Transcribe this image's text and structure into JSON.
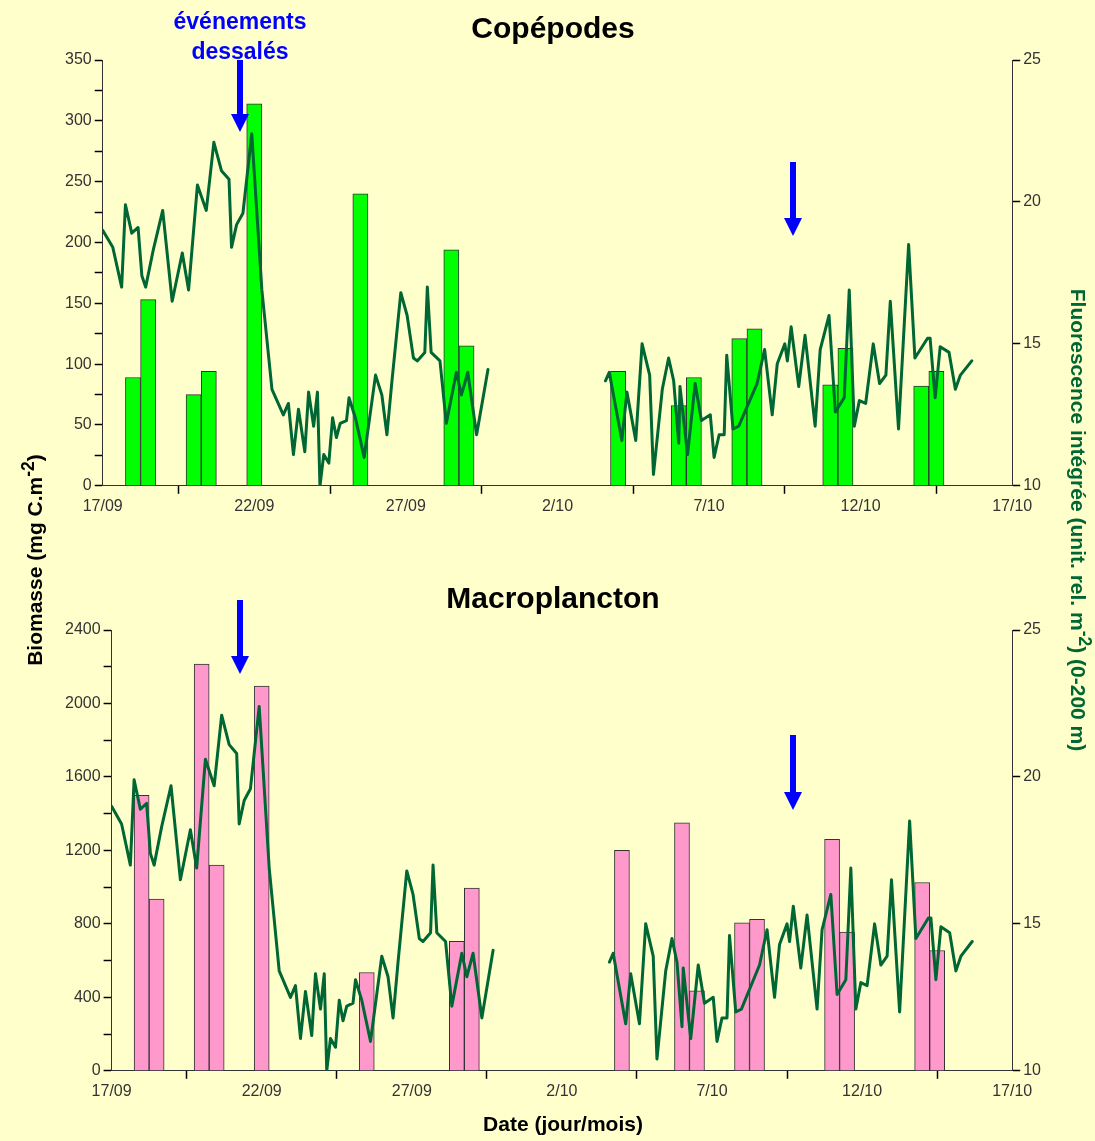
{
  "chart_data": [
    {
      "type": "bar",
      "title": "Copépodes",
      "ylabel": "Biomasse (mg C.m$^{-2}$)",
      "y2label": "Fluorescence intégrée (unit. rel. m$^{-2}$) (0-200 m)",
      "annotations": [
        "événements dessalés"
      ],
      "x": [
        "--09-18T00:00",
        "--09-18T12:00",
        "--09-20T00:00",
        "--09-20T12:00",
        "--09-22T00:00",
        "--09-25T12:00",
        "--09-28T12:00",
        "--09-29T00:00",
        "--10-04T00:00",
        "--10-06T00:00",
        "--10-06T12:00",
        "--10-08T00:00",
        "--10-08T12:00",
        "--10-11T00:00",
        "--10-11T12:00",
        "--10-14T00:00",
        "--10-14T12:00"
      ],
      "series": [
        {
          "color": "#00ff00",
          "values": [
            89,
            153,
            75,
            94,
            314,
            240,
            194,
            115,
            94,
            66,
            89,
            121,
            129,
            83,
            113,
            82,
            94
          ]
        },
        {
          "type": "line",
          "axis": "y2",
          "color": "#006633",
          "x": [
            "--09-17T00:00",
            "--09-17T08:00",
            "--09-17T15:00",
            "--09-17T18:00",
            "--09-17T23:00",
            "--09-18T04:00",
            "--09-18T07:00",
            "--09-18T10:00",
            "--09-18T16:00",
            "--09-18T23:30",
            "--09-19T07:00",
            "--09-19T15:00",
            "--09-19T20:00",
            "--09-20T03:00",
            "--09-20T10:00",
            "--09-20T16:00",
            "--09-20T22:00",
            "--09-21T04:00",
            "--09-21T06:00",
            "--09-21T10:00",
            "--09-21T15:00",
            "--09-21T22:00",
            "--09-22T06:00",
            "--09-22T14:00",
            "--09-22T23:00",
            "--09-23T03:00",
            "--09-23T07:00",
            "--09-23T11:00",
            "--09-23T16:00",
            "--09-23T19:00",
            "--09-23T23:00",
            "--09-24T02:00",
            "--09-24T04:00",
            "--09-24T07:00",
            "--09-24T11:00",
            "--09-24T14:00",
            "--09-24T17:00",
            "--09-24T20:00",
            "--09-25T01:00",
            "--09-25T03:00",
            "--09-25T08:00",
            "--09-25T15:00",
            "--09-26T00:00",
            "--09-26T05:00",
            "--09-26T09:00",
            "--09-26T13:00",
            "--09-26T20:00",
            "--09-27T01:00",
            "--09-27T06:00",
            "--09-27T09:00",
            "--09-27T15:00",
            "--09-27T17:00",
            "--09-27T20:00",
            "--09-28T03:00",
            "--09-28T08:00",
            "--09-28T16:00",
            "--09-28T20:00",
            "--09-29T01:00",
            "--09-29T08:00",
            "--09-29T17:00",
            "--10-01T00:00",
            "--10-03T14:00",
            "--10-03T17:00",
            "--10-04T03:00",
            "--10-04T07:00",
            "--10-04T14:00",
            "--10-04T19:00",
            "--10-05T01:00",
            "--10-05T04:00",
            "--10-05T11:00",
            "--10-05T16:00",
            "--10-05T20:00",
            "--10-06T00:00",
            "--10-06T01:00",
            "--10-06T07:00",
            "--10-06T13:00",
            "--10-06T18:00",
            "--10-07T01:00",
            "--10-07T04:00",
            "--10-07T08:00",
            "--10-07T12:00",
            "--10-07T14:00",
            "--10-07T19:00",
            "--10-07T23:30",
            "--10-08T14:00",
            "--10-08T20:00",
            "--10-09T02:00",
            "--10-09T06:00",
            "--10-09T12:00",
            "--10-09T14:00",
            "--10-09T17:00",
            "--10-09T23:00",
            "--10-10T04:00",
            "--10-10T12:00",
            "--10-10T16:00",
            "--10-10T23:00",
            "--10-11T04:00",
            "--10-11T11:00",
            "--10-11T15:00",
            "--10-11T19:00",
            "--10-11T23:00",
            "--10-12T04:00",
            "--10-12T10:00",
            "--10-12T15:00",
            "--10-12T20:00",
            "--10-12T23:30",
            "--10-13T06:00",
            "--10-13T14:00",
            "--10-13T19:00",
            "--10-14T05:00",
            "--10-14T07:00",
            "--10-14T11:00",
            "--10-14T15:00",
            "--10-14T22:00",
            "--10-15T03:00",
            "--10-15T07:00",
            "--10-15T16:00"
          ],
          "values": [
            19.0,
            18.4,
            17.0,
            19.9,
            18.9,
            19.1,
            17.4,
            17.0,
            18.3,
            19.7,
            16.5,
            18.2,
            16.9,
            20.6,
            19.7,
            22.1,
            21.1,
            20.8,
            18.4,
            19.2,
            19.6,
            22.4,
            16.9,
            13.4,
            12.5,
            12.9,
            11.1,
            12.7,
            11.2,
            13.3,
            12.1,
            13.3,
            10.0,
            11.1,
            10.8,
            12.4,
            11.7,
            12.2,
            12.3,
            13.1,
            12.4,
            11.0,
            13.9,
            13.2,
            11.8,
            13.7,
            16.8,
            16.0,
            14.5,
            14.4,
            14.7,
            17.0,
            14.7,
            14.4,
            12.2,
            14.0,
            13.2,
            14.0,
            11.8,
            14.1,
            null,
            13.7,
            14.0,
            11.6,
            13.3,
            11.6,
            15.0,
            13.9,
            10.4,
            13.4,
            14.5,
            13.7,
            11.5,
            13.5,
            11.1,
            13.6,
            12.3,
            12.5,
            11.0,
            11.8,
            11.8,
            14.6,
            12.0,
            12.1,
            13.6,
            14.8,
            12.5,
            14.3,
            15.0,
            14.4,
            15.6,
            13.5,
            15.3,
            12.1,
            14.8,
            16.0,
            12.6,
            13.1,
            16.9,
            12.1,
            13.0,
            12.9,
            15.0,
            13.6,
            13.9,
            16.5,
            12.0,
            18.5,
            14.5,
            15.2,
            15.2,
            13.1,
            14.9,
            14.7,
            13.4,
            13.9,
            14.4
          ]
        }
      ],
      "xlim": [
        "--09-17",
        "--10-17"
      ],
      "xticks": [
        {
          "value": "--09-17",
          "label": "17/09"
        },
        {
          "value": "--09-22",
          "label": "22/09"
        },
        {
          "value": "--09-27",
          "label": "27/09"
        },
        {
          "value": "--10-02",
          "label": "2/10"
        },
        {
          "value": "--10-07",
          "label": "7/10"
        },
        {
          "value": "--10-12",
          "label": "12/10"
        },
        {
          "value": "--10-17",
          "label": "17/10"
        }
      ],
      "ylim": [
        0,
        350
      ],
      "yticks": [
        0,
        {
          "value": 25,
          "label": null
        },
        50,
        {
          "value": 75,
          "label": null
        },
        100,
        {
          "value": 125,
          "label": null
        },
        150,
        {
          "value": 175,
          "label": null
        },
        200,
        {
          "value": 225,
          "label": null
        },
        250,
        {
          "value": 275,
          "label": null
        },
        300,
        {
          "value": 325,
          "label": null
        },
        350
      ],
      "y2lim": [
        10,
        25
      ],
      "y2ticks": [
        10,
        15,
        20,
        25
      ],
      "grid": false,
      "legend": false
    },
    {
      "type": "bar",
      "title": "Macroplancton",
      "xlabel": "Date (jour/mois)",
      "x": [
        "--09-18T00:00",
        "--09-18T12:00",
        "--09-20T00:00",
        "--09-20T12:00",
        "--09-22T00:00",
        "--09-25T12:00",
        "--09-28T12:00",
        "--09-29T00:00",
        "--10-04T00:00",
        "--10-06T00:00",
        "--10-06T12:00",
        "--10-08T00:00",
        "--10-08T12:00",
        "--10-11T00:00",
        "--10-11T12:00",
        "--10-14T00:00",
        "--10-14T12:00"
      ],
      "series": [
        {
          "color": "#ff99cc",
          "values": [
            1500,
            935,
            2215,
            1120,
            2095,
            535,
            705,
            995,
            1200,
            1350,
            435,
            805,
            825,
            1260,
            755,
            1025,
            655
          ]
        },
        {
          "type": "line",
          "axis": "y2",
          "color": "#006633",
          "x": [
            "--09-17T00:00",
            "--09-17T08:00",
            "--09-17T15:00",
            "--09-17T18:00",
            "--09-17T23:00",
            "--09-18T04:00",
            "--09-18T07:00",
            "--09-18T10:00",
            "--09-18T16:00",
            "--09-18T23:30",
            "--09-19T07:00",
            "--09-19T15:00",
            "--09-19T20:00",
            "--09-20T03:00",
            "--09-20T10:00",
            "--09-20T16:00",
            "--09-20T22:00",
            "--09-21T04:00",
            "--09-21T06:00",
            "--09-21T10:00",
            "--09-21T15:00",
            "--09-21T22:00",
            "--09-22T06:00",
            "--09-22T14:00",
            "--09-22T23:00",
            "--09-23T03:00",
            "--09-23T07:00",
            "--09-23T11:00",
            "--09-23T16:00",
            "--09-23T19:00",
            "--09-23T23:00",
            "--09-24T02:00",
            "--09-24T04:00",
            "--09-24T07:00",
            "--09-24T11:00",
            "--09-24T14:00",
            "--09-24T17:00",
            "--09-24T20:00",
            "--09-25T01:00",
            "--09-25T03:00",
            "--09-25T08:00",
            "--09-25T15:00",
            "--09-26T00:00",
            "--09-26T05:00",
            "--09-26T09:00",
            "--09-26T13:00",
            "--09-26T20:00",
            "--09-27T01:00",
            "--09-27T06:00",
            "--09-27T09:00",
            "--09-27T15:00",
            "--09-27T17:00",
            "--09-27T20:00",
            "--09-28T03:00",
            "--09-28T08:00",
            "--09-28T16:00",
            "--09-28T20:00",
            "--09-29T01:00",
            "--09-29T08:00",
            "--09-29T17:00",
            "--10-01T00:00",
            "--10-03T14:00",
            "--10-03T17:00",
            "--10-04T03:00",
            "--10-04T07:00",
            "--10-04T14:00",
            "--10-04T19:00",
            "--10-05T01:00",
            "--10-05T04:00",
            "--10-05T11:00",
            "--10-05T16:00",
            "--10-05T20:00",
            "--10-06T00:00",
            "--10-06T01:00",
            "--10-06T07:00",
            "--10-06T13:00",
            "--10-06T18:00",
            "--10-07T01:00",
            "--10-07T04:00",
            "--10-07T08:00",
            "--10-07T12:00",
            "--10-07T14:00",
            "--10-07T19:00",
            "--10-07T23:30",
            "--10-08T14:00",
            "--10-08T20:00",
            "--10-09T02:00",
            "--10-09T06:00",
            "--10-09T12:00",
            "--10-09T14:00",
            "--10-09T17:00",
            "--10-09T23:00",
            "--10-10T04:00",
            "--10-10T12:00",
            "--10-10T16:00",
            "--10-10T23:00",
            "--10-11T04:00",
            "--10-11T11:00",
            "--10-11T15:00",
            "--10-11T19:00",
            "--10-11T23:00",
            "--10-12T04:00",
            "--10-12T10:00",
            "--10-12T15:00",
            "--10-12T20:00",
            "--10-12T23:30",
            "--10-13T06:00",
            "--10-13T14:00",
            "--10-13T19:00",
            "--10-14T05:00",
            "--10-14T07:00",
            "--10-14T11:00",
            "--10-14T15:00",
            "--10-14T22:00",
            "--10-15T03:00",
            "--10-15T07:00",
            "--10-15T16:00"
          ],
          "values": [
            19.0,
            18.4,
            17.0,
            19.9,
            18.9,
            19.1,
            17.4,
            17.0,
            18.3,
            19.7,
            16.5,
            18.2,
            16.9,
            20.6,
            19.7,
            22.1,
            21.1,
            20.8,
            18.4,
            19.2,
            19.6,
            22.4,
            16.9,
            13.4,
            12.5,
            12.9,
            11.1,
            12.7,
            11.2,
            13.3,
            12.1,
            13.3,
            10.0,
            11.1,
            10.8,
            12.4,
            11.7,
            12.2,
            12.3,
            13.1,
            12.4,
            11.0,
            13.9,
            13.2,
            11.8,
            13.7,
            16.8,
            16.0,
            14.5,
            14.4,
            14.7,
            17.0,
            14.7,
            14.4,
            12.2,
            14.0,
            13.2,
            14.0,
            11.8,
            14.1,
            null,
            13.7,
            14.0,
            11.6,
            13.3,
            11.6,
            15.0,
            13.9,
            10.4,
            13.4,
            14.5,
            13.7,
            11.5,
            13.5,
            11.1,
            13.6,
            12.3,
            12.5,
            11.0,
            11.8,
            11.8,
            14.6,
            12.0,
            12.1,
            13.6,
            14.8,
            12.5,
            14.3,
            15.0,
            14.4,
            15.6,
            13.5,
            15.3,
            12.1,
            14.8,
            16.0,
            12.6,
            13.1,
            16.9,
            12.1,
            13.0,
            12.9,
            15.0,
            13.6,
            13.9,
            16.5,
            12.0,
            18.5,
            14.5,
            15.2,
            15.2,
            13.1,
            14.9,
            14.7,
            13.4,
            13.9,
            14.4
          ]
        }
      ],
      "xlim": [
        "--09-17",
        "--10-17"
      ],
      "xticks": [
        {
          "value": "--09-17",
          "label": "17/09"
        },
        {
          "value": "--09-22",
          "label": "22/09"
        },
        {
          "value": "--09-27",
          "label": "27/09"
        },
        {
          "value": "--10-02",
          "label": "2/10"
        },
        {
          "value": "--10-07",
          "label": "7/10"
        },
        {
          "value": "--10-12",
          "label": "12/10"
        },
        {
          "value": "--10-17",
          "label": "17/10"
        }
      ],
      "ylim": [
        0,
        2400
      ],
      "yticks": [
        0,
        {
          "value": 200,
          "label": null
        },
        400,
        {
          "value": 600,
          "label": null
        },
        800,
        {
          "value": 1000,
          "label": null
        },
        1200,
        {
          "value": 1400,
          "label": null
        },
        1600,
        {
          "value": 1800,
          "label": null
        },
        2000,
        {
          "value": 2200,
          "label": null
        },
        2400
      ],
      "y2lim": [
        10,
        25
      ],
      "y2ticks": [
        10,
        15,
        20,
        25
      ],
      "grid": false,
      "legend": false
    }
  ]
}
